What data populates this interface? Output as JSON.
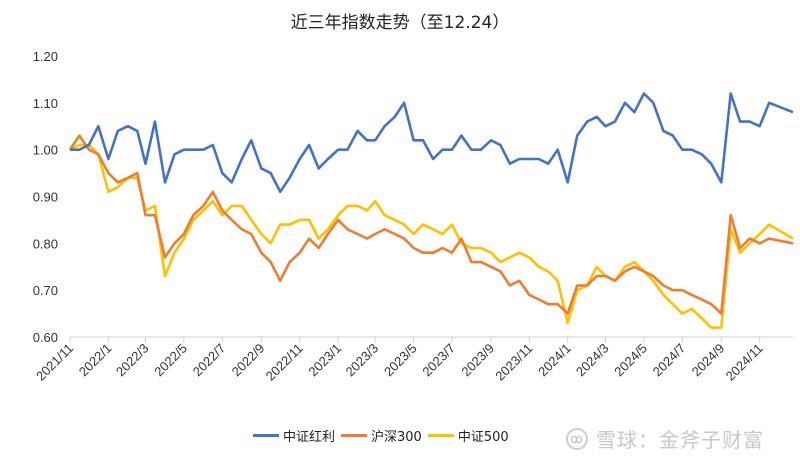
{
  "chart_data": {
    "type": "line",
    "title": "近三年指数走势（至12.24）",
    "ylim": [
      0.6,
      1.2
    ],
    "y_ticks": [
      "0.60",
      "0.70",
      "0.80",
      "0.90",
      "1.00",
      "1.10",
      "1.20"
    ],
    "x_ticks": [
      "2021/11",
      "2022/1",
      "2022/3",
      "2022/5",
      "2022/7",
      "2022/9",
      "2022/11",
      "2023/1",
      "2023/3",
      "2023/5",
      "2023/7",
      "2023/9",
      "2023/11",
      "2024/1",
      "2024/3",
      "2024/5",
      "2024/7",
      "2024/9",
      "2024/11"
    ],
    "grid": false,
    "legend_position": "bottom",
    "x": [
      "2021-11-01",
      "2021-11-16",
      "2021-12-01",
      "2021-12-16",
      "2022-01-01",
      "2022-01-16",
      "2022-02-01",
      "2022-02-16",
      "2022-03-01",
      "2022-03-16",
      "2022-04-01",
      "2022-04-16",
      "2022-05-01",
      "2022-05-16",
      "2022-06-01",
      "2022-06-16",
      "2022-07-01",
      "2022-07-16",
      "2022-08-01",
      "2022-08-16",
      "2022-09-01",
      "2022-09-16",
      "2022-10-01",
      "2022-10-16",
      "2022-11-01",
      "2022-11-16",
      "2022-12-01",
      "2022-12-16",
      "2023-01-01",
      "2023-01-16",
      "2023-02-01",
      "2023-02-16",
      "2023-03-01",
      "2023-03-16",
      "2023-04-01",
      "2023-04-16",
      "2023-05-01",
      "2023-05-16",
      "2023-06-01",
      "2023-06-16",
      "2023-07-01",
      "2023-07-16",
      "2023-08-01",
      "2023-08-16",
      "2023-09-01",
      "2023-09-16",
      "2023-10-01",
      "2023-10-16",
      "2023-11-01",
      "2023-11-16",
      "2023-12-01",
      "2023-12-16",
      "2024-01-01",
      "2024-01-16",
      "2024-02-01",
      "2024-02-16",
      "2024-03-01",
      "2024-03-16",
      "2024-04-01",
      "2024-04-16",
      "2024-05-01",
      "2024-05-16",
      "2024-06-01",
      "2024-06-16",
      "2024-07-01",
      "2024-07-16",
      "2024-08-01",
      "2024-08-16",
      "2024-09-01",
      "2024-09-16",
      "2024-10-01",
      "2024-10-16",
      "2024-11-01",
      "2024-11-16",
      "2024-12-24"
    ],
    "series": [
      {
        "name": "中证红利",
        "color": "#4472C4",
        "values": [
          1.0,
          1.0,
          1.01,
          1.05,
          0.98,
          1.04,
          1.05,
          1.04,
          0.97,
          1.06,
          0.93,
          0.99,
          1.0,
          1.0,
          1.0,
          1.01,
          0.95,
          0.93,
          0.98,
          1.02,
          0.96,
          0.95,
          0.91,
          0.94,
          0.98,
          1.01,
          0.96,
          0.98,
          1.0,
          1.0,
          1.04,
          1.02,
          1.02,
          1.05,
          1.07,
          1.1,
          1.02,
          1.02,
          0.98,
          1.0,
          1.0,
          1.03,
          1.0,
          1.0,
          1.02,
          1.01,
          0.97,
          0.98,
          0.98,
          0.98,
          0.97,
          1.0,
          0.93,
          1.03,
          1.06,
          1.07,
          1.05,
          1.06,
          1.1,
          1.08,
          1.12,
          1.1,
          1.04,
          1.03,
          1.0,
          1.0,
          0.99,
          0.97,
          0.93,
          1.12,
          1.06,
          1.06,
          1.05,
          1.1,
          1.08
        ]
      },
      {
        "name": "沪深300",
        "color": "#ED7D31",
        "values": [
          1.0,
          1.03,
          1.0,
          0.99,
          0.95,
          0.93,
          0.94,
          0.95,
          0.86,
          0.86,
          0.77,
          0.8,
          0.82,
          0.86,
          0.88,
          0.91,
          0.87,
          0.85,
          0.83,
          0.82,
          0.78,
          0.76,
          0.72,
          0.76,
          0.78,
          0.81,
          0.79,
          0.82,
          0.85,
          0.83,
          0.82,
          0.81,
          0.82,
          0.83,
          0.82,
          0.81,
          0.79,
          0.78,
          0.78,
          0.79,
          0.78,
          0.81,
          0.76,
          0.76,
          0.75,
          0.74,
          0.71,
          0.72,
          0.69,
          0.68,
          0.67,
          0.67,
          0.65,
          0.71,
          0.71,
          0.73,
          0.73,
          0.72,
          0.74,
          0.75,
          0.74,
          0.73,
          0.71,
          0.7,
          0.7,
          0.69,
          0.68,
          0.67,
          0.65,
          0.86,
          0.79,
          0.81,
          0.8,
          0.81,
          0.8
        ]
      },
      {
        "name": "中证500",
        "color": "#FFC000",
        "values": [
          1.0,
          1.01,
          1.01,
          0.99,
          0.91,
          0.92,
          0.94,
          0.94,
          0.87,
          0.88,
          0.73,
          0.78,
          0.81,
          0.85,
          0.87,
          0.89,
          0.86,
          0.88,
          0.88,
          0.85,
          0.82,
          0.8,
          0.84,
          0.84,
          0.85,
          0.85,
          0.81,
          0.83,
          0.86,
          0.88,
          0.88,
          0.87,
          0.89,
          0.86,
          0.85,
          0.84,
          0.82,
          0.84,
          0.83,
          0.82,
          0.84,
          0.8,
          0.79,
          0.79,
          0.78,
          0.76,
          0.77,
          0.78,
          0.77,
          0.75,
          0.74,
          0.72,
          0.63,
          0.7,
          0.71,
          0.75,
          0.73,
          0.72,
          0.75,
          0.76,
          0.74,
          0.72,
          0.69,
          0.67,
          0.65,
          0.66,
          0.64,
          0.62,
          0.62,
          0.83,
          0.78,
          0.8,
          0.82,
          0.84,
          0.81
        ]
      }
    ]
  },
  "watermark": "雪球：金斧子财富"
}
